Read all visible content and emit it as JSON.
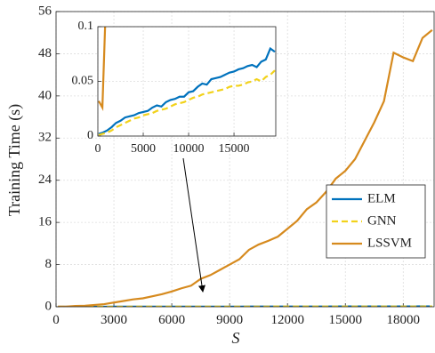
{
  "chart_data": {
    "type": "line",
    "x_label": "S",
    "y_label": "Training Time (s)",
    "x": [
      100,
      500,
      1000,
      1500,
      2000,
      2500,
      3000,
      3500,
      4000,
      4500,
      5000,
      5500,
      6000,
      6500,
      7000,
      7500,
      8000,
      8500,
      9000,
      9500,
      10000,
      10500,
      11000,
      11500,
      12000,
      12500,
      13000,
      13500,
      14000,
      14500,
      15000,
      15500,
      16000,
      16500,
      17000,
      17500,
      18000,
      18500,
      19000,
      19500
    ],
    "series": [
      {
        "name": "ELM",
        "color": "#0072BD",
        "dashed": false,
        "values": [
          0.002,
          0.003,
          0.005,
          0.008,
          0.012,
          0.014,
          0.017,
          0.018,
          0.019,
          0.021,
          0.022,
          0.023,
          0.026,
          0.028,
          0.027,
          0.031,
          0.033,
          0.034,
          0.036,
          0.036,
          0.04,
          0.041,
          0.045,
          0.048,
          0.047,
          0.052,
          0.053,
          0.054,
          0.056,
          0.058,
          0.059,
          0.061,
          0.062,
          0.064,
          0.065,
          0.063,
          0.068,
          0.07,
          0.08,
          0.077
        ]
      },
      {
        "name": "GNN",
        "color": "#F2D21B",
        "dashed": true,
        "values": [
          0.001,
          0.002,
          0.003,
          0.005,
          0.008,
          0.01,
          0.012,
          0.014,
          0.016,
          0.017,
          0.019,
          0.02,
          0.021,
          0.023,
          0.024,
          0.025,
          0.027,
          0.029,
          0.03,
          0.031,
          0.033,
          0.035,
          0.036,
          0.038,
          0.039,
          0.04,
          0.041,
          0.042,
          0.043,
          0.045,
          0.046,
          0.046,
          0.047,
          0.049,
          0.05,
          0.052,
          0.05,
          0.054,
          0.056,
          0.06
        ]
      },
      {
        "name": "LSSVM",
        "color": "#D68A1E",
        "dashed": false,
        "values": [
          0.032,
          0.026,
          0.15,
          0.2,
          0.35,
          0.5,
          0.8,
          1.1,
          1.4,
          1.6,
          2.0,
          2.4,
          2.9,
          3.5,
          4.0,
          5.3,
          6.0,
          7.0,
          8.0,
          9.0,
          10.8,
          11.8,
          12.5,
          13.3,
          14.8,
          16.3,
          18.5,
          19.8,
          21.8,
          24.3,
          25.8,
          28.0,
          31.5,
          35,
          39,
          48.2,
          47.3,
          46.6,
          51,
          52.5
        ]
      }
    ],
    "xlim": [
      0,
      19600
    ],
    "ylim": [
      0,
      56
    ],
    "xticks": [
      0,
      3000,
      6000,
      9000,
      12000,
      15000,
      18000
    ],
    "yticks": [
      0,
      8,
      16,
      24,
      32,
      40,
      48,
      56
    ],
    "grid": true,
    "legend": "lower right",
    "inset": {
      "xlim": [
        0,
        19600
      ],
      "ylim": [
        0,
        0.1
      ],
      "xticks": [
        0,
        5000,
        10000,
        15000
      ],
      "yticks": [
        0,
        0.05,
        0.1
      ]
    }
  }
}
